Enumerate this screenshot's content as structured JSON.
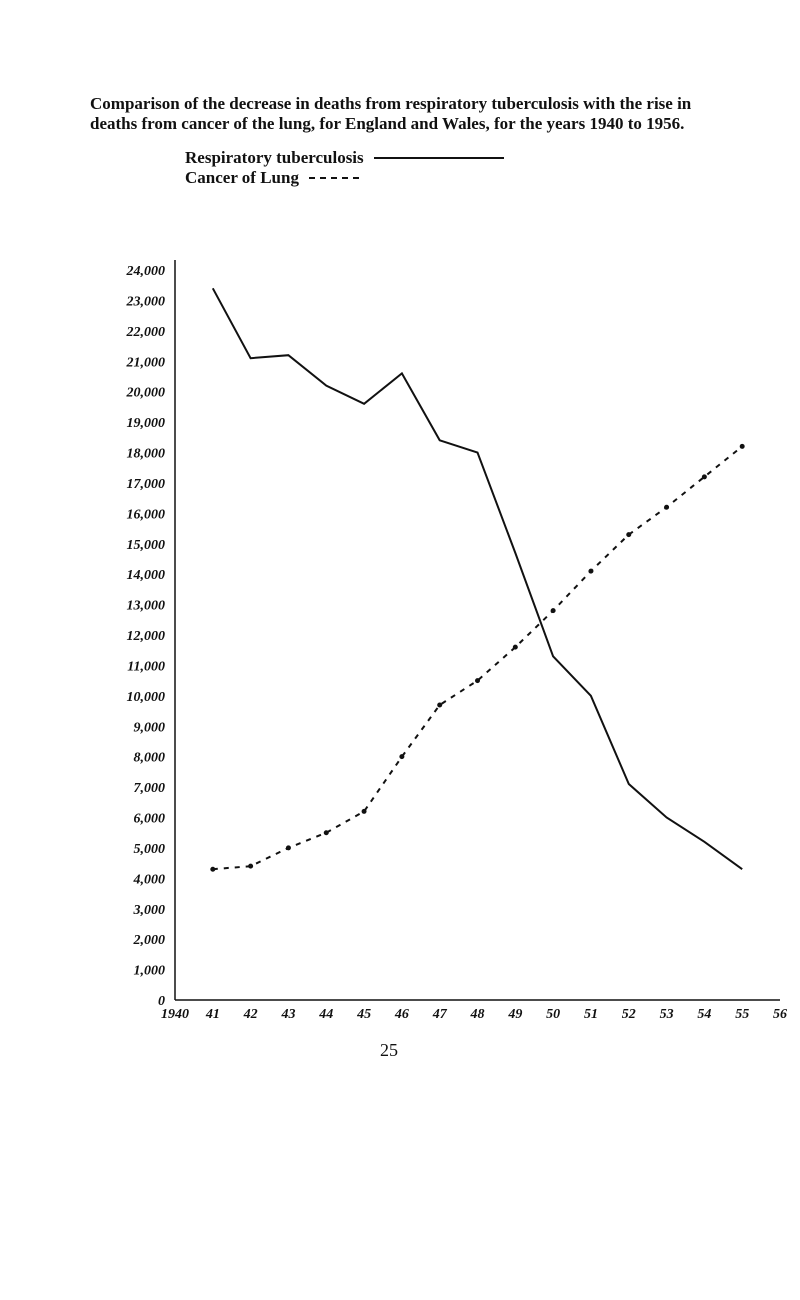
{
  "title": "Comparison of the decrease in deaths from respiratory tuberculosis with the rise in deaths from cancer of the lung, for England and Wales, for the years 1940 to 1956.",
  "page_number": "25",
  "legend": {
    "tb_label": "Respiratory tuberculosis",
    "cancer_label": "Cancer of Lung"
  },
  "chart_data": {
    "type": "line",
    "title": "Comparison of the decrease in deaths from respiratory tuberculosis with the rise in deaths from cancer of the lung, for England and Wales, for the years 1940 to 1956.",
    "xlabel": "",
    "ylabel": "",
    "x": [
      1940,
      1941,
      1942,
      1943,
      1944,
      1945,
      1946,
      1947,
      1948,
      1949,
      1950,
      1951,
      1952,
      1953,
      1954,
      1955,
      1956
    ],
    "x_tick_labels": [
      "1940",
      "41",
      "42",
      "43",
      "44",
      "45",
      "46",
      "47",
      "48",
      "49",
      "50",
      "51",
      "52",
      "53",
      "54",
      "55",
      "56"
    ],
    "ylim": [
      0,
      24000
    ],
    "y_ticks": [
      0,
      1000,
      2000,
      3000,
      4000,
      5000,
      6000,
      7000,
      8000,
      9000,
      10000,
      11000,
      12000,
      13000,
      14000,
      15000,
      16000,
      17000,
      18000,
      19000,
      20000,
      21000,
      22000,
      23000,
      24000
    ],
    "y_tick_labels": [
      "0",
      "1,000",
      "2,000",
      "3,000",
      "4,000",
      "5,000",
      "6,000",
      "7,000",
      "8,000",
      "9,000",
      "10,000",
      "11,000",
      "12,000",
      "13,000",
      "14,000",
      "15,000",
      "16,000",
      "17,000",
      "18,000",
      "19,000",
      "20,000",
      "21,000",
      "22,000",
      "23,000",
      "24,000"
    ],
    "grid": false,
    "series": [
      {
        "name": "Respiratory tuberculosis",
        "style": "solid",
        "color": "#111111",
        "values": [
          null,
          23400,
          21100,
          21200,
          20200,
          19600,
          20600,
          18400,
          18000,
          14700,
          11300,
          10000,
          7100,
          6000,
          5200,
          4300,
          null
        ]
      },
      {
        "name": "Cancer of Lung",
        "style": "dashed",
        "color": "#111111",
        "values": [
          null,
          4300,
          4400,
          5000,
          5500,
          6200,
          8000,
          9700,
          10500,
          11600,
          12800,
          14100,
          15300,
          16200,
          17200,
          18200,
          null
        ]
      }
    ]
  }
}
